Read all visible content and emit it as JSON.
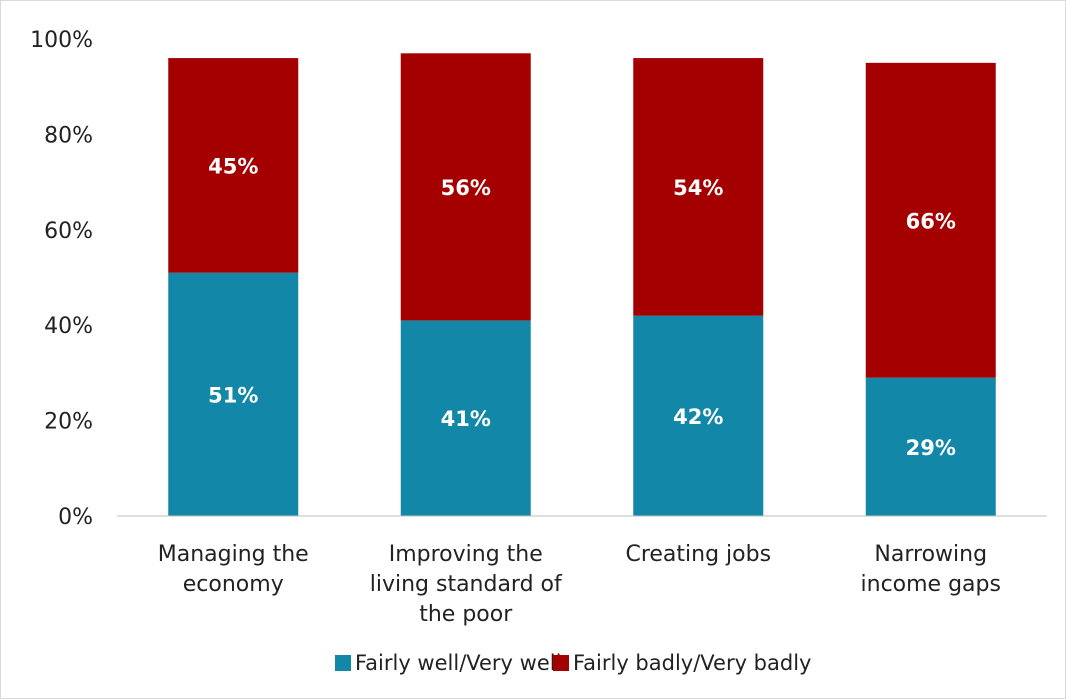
{
  "chart_data": {
    "type": "bar",
    "stacked": true,
    "categories": [
      [
        "Managing the",
        "economy"
      ],
      [
        "Improving the",
        "living standard of",
        "the poor"
      ],
      [
        "Creating jobs"
      ],
      [
        "Narrowing",
        "income gaps"
      ]
    ],
    "series": [
      {
        "name": "Fairly well/Very well",
        "values": [
          51,
          41,
          42,
          29
        ],
        "labels": [
          "51%",
          "41%",
          "42%",
          "29%"
        ],
        "color": "#1287a8"
      },
      {
        "name": "Fairly badly/Very badly",
        "values": [
          45,
          56,
          54,
          66
        ],
        "labels": [
          "45%",
          "56%",
          "54%",
          "66%"
        ],
        "color": "#a50000"
      }
    ],
    "ylim": [
      0,
      100
    ],
    "yticks": [
      "0%",
      "20%",
      "40%",
      "60%",
      "80%",
      "100%"
    ],
    "grid": false,
    "legend": "bottom"
  }
}
